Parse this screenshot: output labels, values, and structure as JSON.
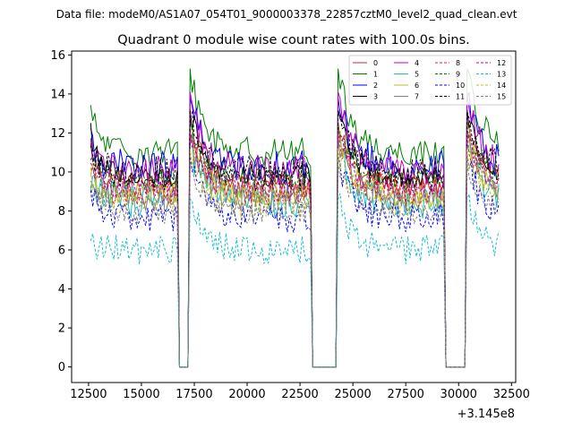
{
  "chart_data": {
    "type": "line",
    "suptitle": "Data file: modeM0/AS1A07_054T01_9000003378_22857cztM0_level2_quad_clean.evt",
    "title": "Quadrant 0 module wise count rates with 100.0s bins.",
    "xlabel": "",
    "ylabel": "",
    "x_offset_label": "+3.145e8",
    "xlim": [
      11700,
      32700
    ],
    "ylim": [
      -0.8,
      16.2
    ],
    "x_ticks": [
      12500,
      15000,
      17500,
      20000,
      22500,
      25000,
      27500,
      30000,
      32500
    ],
    "x_tick_labels": [
      "12500",
      "15000",
      "17500",
      "20000",
      "22500",
      "25000",
      "27500",
      "30000",
      "32500"
    ],
    "y_ticks": [
      0,
      2,
      4,
      6,
      8,
      10,
      12,
      14,
      16
    ],
    "y_tick_labels": [
      "0",
      "2",
      "4",
      "6",
      "8",
      "10",
      "12",
      "14",
      "16"
    ],
    "bin_seconds": 100,
    "x_start": 12600,
    "x_end": 31900,
    "segments": [
      {
        "from": 12600,
        "to": 16700,
        "gap_to": 17300
      },
      {
        "from": 17300,
        "to": 23000,
        "gap_to": 24300
      },
      {
        "from": 24300,
        "to": 29300,
        "gap_to": 30400
      },
      {
        "from": 30400,
        "to": 31900,
        "gap_to": null
      }
    ],
    "legend_position": "top-right",
    "series": [
      {
        "name": "0",
        "color": "#d62728",
        "dash": "solid",
        "start": 11.2,
        "level": 9.3,
        "spike": 12.6
      },
      {
        "name": "1",
        "color": "#008000",
        "dash": "solid",
        "start": 13.0,
        "level": 11.0,
        "spike": 15.3
      },
      {
        "name": "2",
        "color": "#0000ff",
        "dash": "solid",
        "start": 11.6,
        "level": 10.2,
        "spike": 13.8
      },
      {
        "name": "3",
        "color": "#000000",
        "dash": "solid",
        "start": 12.0,
        "level": 9.8,
        "spike": 13.2
      },
      {
        "name": "4",
        "color": "#bf00bf",
        "dash": "solid",
        "start": 11.0,
        "level": 10.1,
        "spike": 14.1
      },
      {
        "name": "5",
        "color": "#17becf",
        "dash": "solid",
        "start": 9.8,
        "level": 8.5,
        "spike": 11.5
      },
      {
        "name": "6",
        "color": "#bcbd22",
        "dash": "solid",
        "start": 10.2,
        "level": 8.8,
        "spike": 12.0
      },
      {
        "name": "7",
        "color": "#7f7f7f",
        "dash": "solid",
        "start": 10.0,
        "level": 8.7,
        "spike": 11.8
      },
      {
        "name": "8",
        "color": "#d62728",
        "dash": "dashed",
        "start": 10.5,
        "level": 9.1,
        "spike": 12.2
      },
      {
        "name": "9",
        "color": "#008000",
        "dash": "dashed",
        "start": 10.8,
        "level": 9.6,
        "spike": 12.4
      },
      {
        "name": "10",
        "color": "#0000ff",
        "dash": "dashed",
        "start": 9.2,
        "level": 7.6,
        "spike": 10.8
      },
      {
        "name": "11",
        "color": "#000000",
        "dash": "dashed",
        "start": 11.4,
        "level": 9.9,
        "spike": 13.1
      },
      {
        "name": "12",
        "color": "#bf00bf",
        "dash": "dashed",
        "start": 10.4,
        "level": 9.0,
        "spike": 12.0
      },
      {
        "name": "13",
        "color": "#17becf",
        "dash": "dashed",
        "start": 6.3,
        "level": 6.0,
        "spike": 8.6
      },
      {
        "name": "14",
        "color": "#bcbd22",
        "dash": "dashed",
        "start": 9.9,
        "level": 8.5,
        "spike": 11.2
      },
      {
        "name": "15",
        "color": "#7f7f7f",
        "dash": "dashed",
        "start": 9.0,
        "level": 7.9,
        "spike": 10.4
      }
    ]
  }
}
